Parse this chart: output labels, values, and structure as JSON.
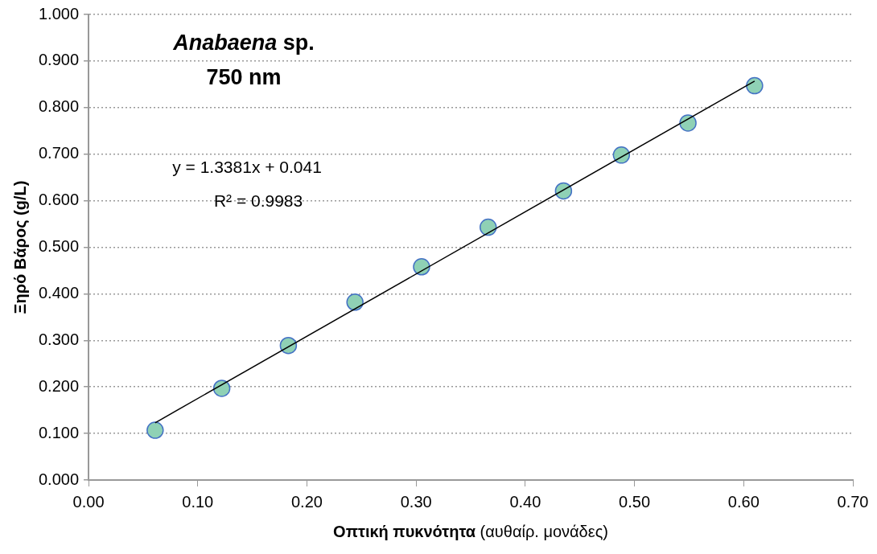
{
  "chart_data": {
    "type": "scatter",
    "xlabel": "Οπτική πυκνότητα (αυθαίρ. μονάδες)",
    "ylabel": "Ξηρό Βάρος (g/L)",
    "annotations": [
      "Anabaena sp.",
      "750 nm",
      "y = 1.3381x + 0.041",
      "R² = 0.9983"
    ],
    "series": [
      {
        "marker": "circle",
        "color": "#8fd1b5",
        "x": [
          0.061,
          0.122,
          0.183,
          0.244,
          0.305,
          0.366,
          0.435,
          0.488,
          0.549,
          0.61
        ],
        "values": [
          0.107,
          0.197,
          0.289,
          0.382,
          0.458,
          0.543,
          0.621,
          0.698,
          0.767,
          0.847
        ]
      },
      {
        "type": "line",
        "marker": "none",
        "color": "#000000",
        "x": [
          0.061,
          0.61
        ],
        "values": [
          0.123,
          0.857
        ]
      }
    ],
    "xlim": [
      0,
      0.7
    ],
    "xticks": [
      {
        "value": 0,
        "label": "0.00"
      },
      {
        "value": 0.1,
        "label": "0.10"
      },
      {
        "value": 0.2,
        "label": "0.20"
      },
      {
        "value": 0.3,
        "label": "0.30"
      },
      {
        "value": 0.4,
        "label": "0.40"
      },
      {
        "value": 0.5,
        "label": "0.50"
      },
      {
        "value": 0.6,
        "label": "0.60"
      },
      {
        "value": 0.7,
        "label": "0.70"
      }
    ],
    "ylim": [
      0,
      1
    ],
    "yticks": [
      {
        "value": 0,
        "label": "0.000"
      },
      {
        "value": 0.1,
        "label": "0.100"
      },
      {
        "value": 0.2,
        "label": "0.200"
      },
      {
        "value": 0.3,
        "label": "0.300"
      },
      {
        "value": 0.4,
        "label": "0.400"
      },
      {
        "value": 0.5,
        "label": "0.500"
      },
      {
        "value": 0.6,
        "label": "0.600"
      },
      {
        "value": 0.7,
        "label": "0.700"
      },
      {
        "value": 0.8,
        "label": "0.800"
      },
      {
        "value": 0.9,
        "label": "0.900"
      },
      {
        "value": 1,
        "label": "1.000"
      }
    ],
    "grid": "y",
    "legend": false
  }
}
